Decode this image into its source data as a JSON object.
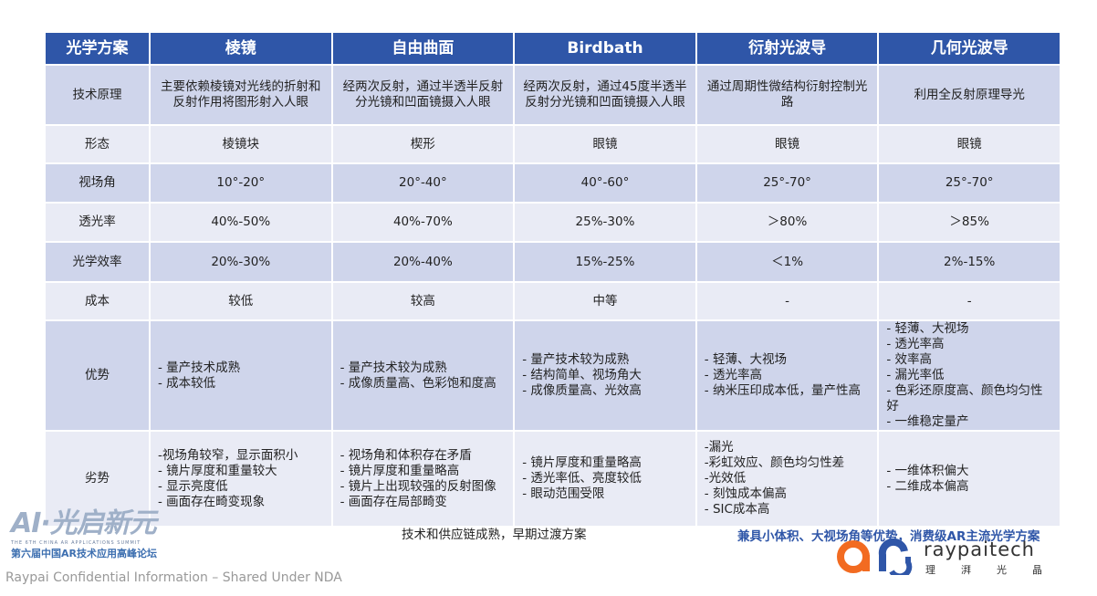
{
  "table": {
    "header": [
      "光学方案",
      "棱镜",
      "自由曲面",
      "Birdbath",
      "衍射光波导",
      "几何光波导"
    ],
    "rows": [
      [
        "技术原理",
        "主要依赖棱镜对光线的折射和反射作用将图形射入人眼",
        "经两次反射，通过半透半反射分光镜和凹面镜摄入人眼",
        "经两次反射，通过45度半透半反射分光镜和凹面镜摄入人眼",
        "通过周期性微结构衍射控制光路",
        "利用全反射原理导光"
      ],
      [
        "形态",
        "棱镜块",
        "楔形",
        "眼镜",
        "眼镜",
        "眼镜"
      ],
      [
        "视场角",
        "10°-20°",
        "20°-40°",
        "40°-60°",
        "25°-70°",
        "25°-70°"
      ],
      [
        "透光率",
        "40%-50%",
        "40%-70%",
        "25%-30%",
        "＞80%",
        "＞85%"
      ],
      [
        "光学效率",
        "20%-30%",
        "20%-40%",
        "15%-25%",
        "＜1%",
        "2%-15%"
      ],
      [
        "成本",
        "较低",
        "较高",
        "中等",
        "-",
        "-"
      ],
      [
        "优势",
        [
          "- 量产技术成熟",
          "- 成本较低"
        ],
        [
          "- 量产技术较为成熟",
          "- 成像质量高、色彩饱和度高"
        ],
        [
          "- 量产技术较为成熟",
          "- 结构简单、视场角大",
          "- 成像质量高、光效高"
        ],
        [
          "- 轻薄、大视场",
          "- 透光率高",
          "- 纳米压印成本低，量产性高"
        ],
        [
          "- 轻薄、大视场",
          "- 透光率高",
          "- 效率高",
          "- 漏光率低",
          "- 色彩还原度高、颜色均匀性好",
          "- 一维稳定量产"
        ]
      ],
      [
        "劣势",
        [
          "-视场角较窄，显示面积小",
          "- 镜片厚度和重量较大",
          "- 显示亮度低",
          "- 画面存在畸变现象"
        ],
        [
          "- 视场角和体积存在矛盾",
          "- 镜片厚度和重量略高",
          "- 镜片上出现较强的反射图像",
          "- 画面存在局部畸变"
        ],
        [
          "- 镜片厚度和重量略高",
          "- 透光率低、亮度较低",
          "- 眼动范围受限"
        ],
        [
          "-漏光",
          "-彩虹效应、颜色均匀性差",
          "-光效低",
          "- 刻蚀成本偏高",
          "- SIC成本高"
        ],
        [
          "- 一维体积偏大",
          "- 二维成本偏高"
        ]
      ]
    ]
  },
  "notes": {
    "left": "技术和供应链成熟，早期过渡方案",
    "right": "兼具小体积、大视场角等优势，消费级AR主流光学方案"
  },
  "event_logo": {
    "name": "AI·光启新元",
    "title": "第六届中国AR技术应用高峰论坛",
    "subtitle": "THE 6TH CHINA AR APPLICATIONS SUMMIT"
  },
  "brand": {
    "name": "raypaitech",
    "cn": "理湃光晶"
  },
  "footer": "Raypai Confidential Information – Shared Under NDA"
}
